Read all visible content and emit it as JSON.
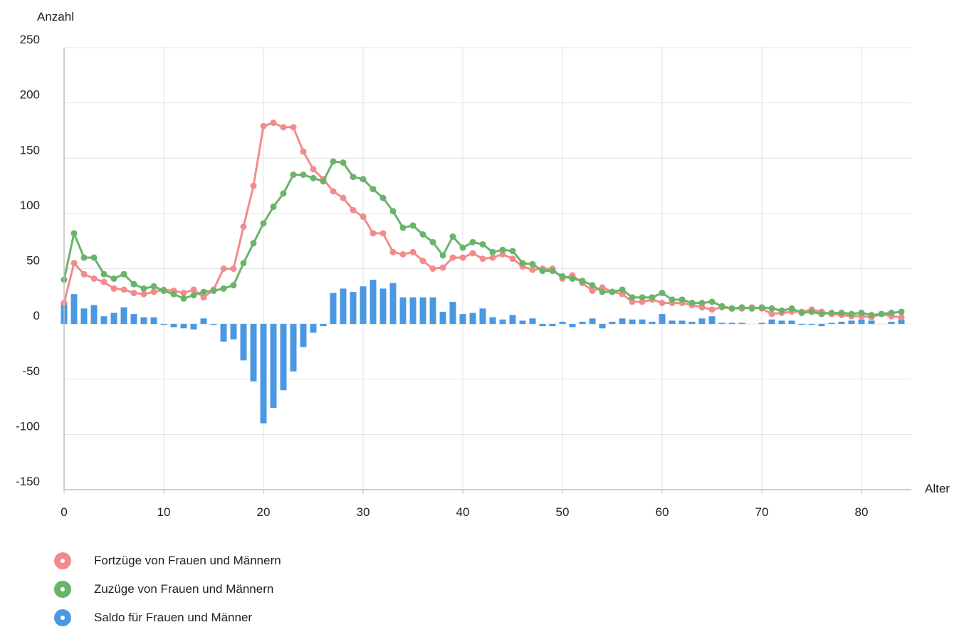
{
  "chart_data": {
    "type": "line",
    "title": "",
    "ylabel": "Anzahl",
    "xlabel": "Alter",
    "xlim": [
      0,
      85
    ],
    "ylim": [
      -150,
      250
    ],
    "xticks": [
      0,
      10,
      20,
      30,
      40,
      50,
      60,
      70,
      80
    ],
    "yticks": [
      -150,
      -100,
      -50,
      0,
      50,
      100,
      150,
      200,
      250
    ],
    "grid": true,
    "legend_position": "bottom-left",
    "x": [
      0,
      1,
      2,
      3,
      4,
      5,
      6,
      7,
      8,
      9,
      10,
      11,
      12,
      13,
      14,
      15,
      16,
      17,
      18,
      19,
      20,
      21,
      22,
      23,
      24,
      25,
      26,
      27,
      28,
      29,
      30,
      31,
      32,
      33,
      34,
      35,
      36,
      37,
      38,
      39,
      40,
      41,
      42,
      43,
      44,
      45,
      46,
      47,
      48,
      49,
      50,
      51,
      52,
      53,
      54,
      55,
      56,
      57,
      58,
      59,
      60,
      61,
      62,
      63,
      64,
      65,
      66,
      67,
      68,
      69,
      70,
      71,
      72,
      73,
      74,
      75,
      76,
      77,
      78,
      79,
      80,
      81,
      82,
      83,
      84
    ],
    "series": [
      {
        "name": "Fortzüge von Frauen und Männern",
        "type": "line",
        "color": "#f28c8c",
        "values": [
          19,
          55,
          45,
          41,
          38,
          32,
          31,
          28,
          27,
          29,
          31,
          30,
          28,
          31,
          24,
          31,
          50,
          50,
          88,
          125,
          179,
          182,
          178,
          178,
          156,
          140,
          131,
          120,
          114,
          103,
          97,
          82,
          82,
          65,
          63,
          65,
          57,
          50,
          51,
          60,
          60,
          64,
          59,
          60,
          63,
          59,
          52,
          49,
          50,
          50,
          41,
          44,
          37,
          30,
          33,
          29,
          27,
          20,
          20,
          22,
          19,
          19,
          19,
          17,
          15,
          13,
          15,
          14,
          14,
          15,
          14,
          9,
          10,
          11,
          11,
          13,
          11,
          9,
          8,
          7,
          7,
          6,
          9,
          7,
          6
        ]
      },
      {
        "name": "Zuzüge von Frauen und Männern",
        "type": "line",
        "color": "#6ab46a",
        "values": [
          40,
          82,
          60,
          60,
          45,
          41,
          45,
          36,
          32,
          34,
          30,
          27,
          23,
          26,
          29,
          30,
          32,
          35,
          55,
          73,
          91,
          106,
          118,
          135,
          135,
          132,
          129,
          147,
          146,
          133,
          131,
          122,
          114,
          102,
          87,
          89,
          81,
          74,
          62,
          79,
          69,
          74,
          72,
          65,
          67,
          66,
          55,
          54,
          48,
          48,
          43,
          41,
          39,
          35,
          29,
          29,
          31,
          24,
          24,
          24,
          28,
          22,
          22,
          19,
          19,
          20,
          16,
          14,
          15,
          14,
          15,
          14,
          12,
          14,
          10,
          11,
          9,
          10,
          10,
          9,
          10,
          8,
          9,
          10,
          11
        ]
      },
      {
        "name": "Saldo für Frauen und Männer",
        "type": "bar",
        "color": "#4a98e2",
        "values": [
          20,
          27,
          14,
          17,
          7,
          10,
          15,
          9,
          6,
          6,
          -1,
          -3,
          -4,
          -5,
          5,
          -1,
          -16,
          -14,
          -33,
          -52,
          -90,
          -76,
          -60,
          -43,
          -21,
          -8,
          -2,
          28,
          32,
          29,
          34,
          40,
          32,
          37,
          24,
          24,
          24,
          24,
          11,
          20,
          9,
          10,
          14,
          6,
          4,
          8,
          3,
          5,
          -2,
          -2,
          2,
          -3,
          2,
          5,
          -4,
          2,
          5,
          4,
          4,
          2,
          9,
          3,
          3,
          2,
          5,
          7,
          1,
          1,
          1,
          0,
          1,
          4,
          3,
          3,
          -1,
          -1,
          -2,
          1,
          2,
          3,
          4,
          3,
          0,
          2,
          4
        ]
      }
    ]
  }
}
